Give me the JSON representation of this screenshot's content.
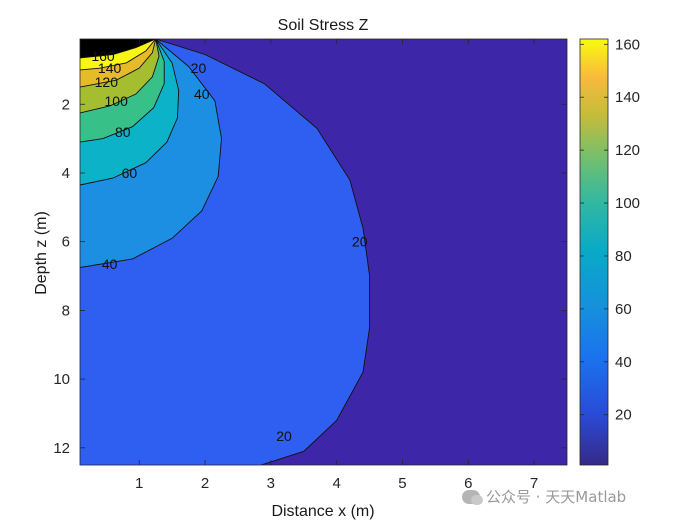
{
  "watermark": {
    "text": "公众号 · 天天Matlab",
    "icon": "wechat-icon"
  },
  "chart_data": {
    "type": "filled-contour",
    "title": "Soil Stress Z",
    "xlabel": "Distance x (m)",
    "ylabel": "Depth z (m)",
    "xlim": [
      0.1,
      7.5
    ],
    "ylim": [
      0.1,
      12.5
    ],
    "y_direction": "reversed",
    "x_ticks": [
      1,
      2,
      3,
      4,
      5,
      6,
      7
    ],
    "y_ticks": [
      2,
      4,
      6,
      8,
      10,
      12
    ],
    "grid": false,
    "colormap": "parula",
    "colorbar": {
      "position": "right",
      "ticks": [
        20,
        40,
        60,
        80,
        100,
        120,
        140,
        160
      ],
      "range": [
        1,
        162
      ]
    },
    "contour_levels": [
      20,
      40,
      60,
      80,
      100,
      120,
      140,
      160
    ],
    "level_colors": [
      "#3e26a8",
      "#2e5ff0",
      "#1d8fe2",
      "#0cb3c8",
      "#38c089",
      "#a5be2f",
      "#e5bb2c",
      "#f9f614"
    ],
    "contours": [
      {
        "level": 20,
        "points": [
          [
            1.25,
            0.1
          ],
          [
            2.0,
            0.55
          ],
          [
            2.9,
            1.4
          ],
          [
            3.7,
            2.7
          ],
          [
            4.2,
            4.2
          ],
          [
            4.4,
            5.6
          ],
          [
            4.5,
            7.0
          ],
          [
            4.5,
            8.5
          ],
          [
            4.4,
            9.8
          ],
          [
            4.0,
            11.2
          ],
          [
            3.5,
            12.1
          ],
          [
            2.85,
            12.5
          ]
        ]
      },
      {
        "level": 40,
        "points": [
          [
            1.25,
            0.1
          ],
          [
            1.75,
            0.9
          ],
          [
            2.15,
            1.9
          ],
          [
            2.25,
            3.0
          ],
          [
            2.2,
            4.1
          ],
          [
            1.95,
            5.1
          ],
          [
            1.5,
            5.9
          ],
          [
            0.9,
            6.5
          ],
          [
            0.1,
            6.75
          ]
        ]
      },
      {
        "level": 60,
        "points": [
          [
            1.25,
            0.1
          ],
          [
            1.5,
            0.8
          ],
          [
            1.6,
            1.6
          ],
          [
            1.58,
            2.4
          ],
          [
            1.42,
            3.1
          ],
          [
            1.1,
            3.7
          ],
          [
            0.6,
            4.15
          ],
          [
            0.1,
            4.35
          ]
        ]
      },
      {
        "level": 80,
        "points": [
          [
            1.25,
            0.1
          ],
          [
            1.38,
            0.75
          ],
          [
            1.38,
            1.4
          ],
          [
            1.22,
            2.1
          ],
          [
            0.9,
            2.65
          ],
          [
            0.45,
            3.0
          ],
          [
            0.1,
            3.1
          ]
        ]
      },
      {
        "level": 100,
        "points": [
          [
            1.25,
            0.1
          ],
          [
            1.3,
            0.6
          ],
          [
            1.2,
            1.2
          ],
          [
            0.95,
            1.7
          ],
          [
            0.55,
            2.05
          ],
          [
            0.1,
            2.25
          ]
        ]
      },
      {
        "level": 120,
        "points": [
          [
            1.25,
            0.1
          ],
          [
            1.2,
            0.5
          ],
          [
            1.0,
            0.95
          ],
          [
            0.65,
            1.3
          ],
          [
            0.1,
            1.5
          ]
        ]
      },
      {
        "level": 140,
        "points": [
          [
            1.25,
            0.1
          ],
          [
            1.1,
            0.45
          ],
          [
            0.8,
            0.8
          ],
          [
            0.4,
            0.95
          ],
          [
            0.1,
            1.0
          ]
        ]
      },
      {
        "level": 160,
        "points": [
          [
            1.25,
            0.1
          ],
          [
            0.95,
            0.35
          ],
          [
            0.6,
            0.55
          ],
          [
            0.1,
            0.65
          ]
        ]
      }
    ],
    "contour_labels": [
      {
        "text": "20",
        "x": 1.9,
        "y": 0.95
      },
      {
        "text": "40",
        "x": 1.95,
        "y": 1.7
      },
      {
        "text": "60",
        "x": 0.85,
        "y": 4.0
      },
      {
        "text": "80",
        "x": 0.75,
        "y": 2.8
      },
      {
        "text": "100",
        "x": 0.65,
        "y": 1.9
      },
      {
        "text": "120",
        "x": 0.5,
        "y": 1.35
      },
      {
        "text": "140",
        "x": 0.55,
        "y": 0.95
      },
      {
        "text": "160",
        "x": 0.45,
        "y": 0.6
      },
      {
        "text": "40",
        "x": 0.55,
        "y": 6.65
      },
      {
        "text": "20",
        "x": 4.35,
        "y": 6.0
      },
      {
        "text": "20",
        "x": 3.2,
        "y": 11.65
      }
    ]
  }
}
